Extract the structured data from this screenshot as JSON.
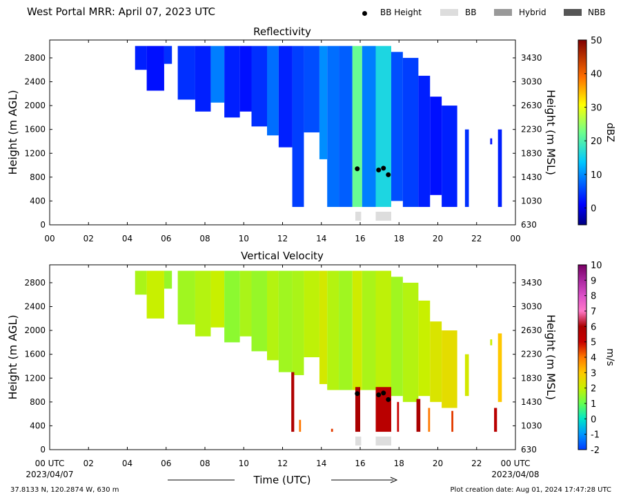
{
  "page": {
    "title": "West Portal MRR:  April 07, 2023 UTC",
    "coords": "37.8133 N, 120.2874 W, 630 m",
    "created": "Plot creation date: Aug 01, 2024 17:47:28 UTC",
    "start_date": "2023/04/07",
    "end_date": "2023/04/08",
    "time_label": "Time (UTC)"
  },
  "legend": [
    {
      "label": "BB Height",
      "kind": "dot",
      "color": "#000000"
    },
    {
      "label": "BB",
      "kind": "box",
      "color": "#dddddd"
    },
    {
      "label": "Hybrid",
      "kind": "box",
      "color": "#999999"
    },
    {
      "label": "NBB",
      "kind": "box",
      "color": "#555555"
    }
  ],
  "chart_data": [
    {
      "type": "heatmap",
      "title": "Reflectivity",
      "ylabel": "Height (m AGL)",
      "ylabel_right": "Height (m MSL)",
      "ylim": [
        0,
        3100
      ],
      "xlim": [
        0,
        24
      ],
      "x_ticks": [
        "00",
        "02",
        "04",
        "06",
        "08",
        "10",
        "12",
        "14",
        "16",
        "18",
        "20",
        "22",
        "00"
      ],
      "y_ticks": [
        0,
        400,
        800,
        1200,
        1600,
        2000,
        2400,
        2800
      ],
      "y_ticks_right": [
        630,
        1030,
        1430,
        1830,
        2230,
        2630,
        3030,
        3430
      ],
      "colorbar": {
        "label": "dBZ",
        "min": -5,
        "max": 50,
        "ticks": [
          0,
          10,
          20,
          30,
          40,
          50
        ]
      },
      "bb_height_points": [
        {
          "hour": 15.85,
          "height_m": 940
        },
        {
          "hour": 16.95,
          "height_m": 920
        },
        {
          "hour": 17.2,
          "height_m": 950
        },
        {
          "hour": 17.45,
          "height_m": 840
        }
      ],
      "bb_periods": [
        [
          15.75,
          16.05
        ],
        [
          16.8,
          17.6
        ]
      ],
      "echo_columns": [
        {
          "start": 4.4,
          "end": 5.0,
          "top": 3000,
          "bottom": 2600,
          "value": 3
        },
        {
          "start": 5.0,
          "end": 5.9,
          "top": 3000,
          "bottom": 2250,
          "value": 2
        },
        {
          "start": 5.9,
          "end": 6.3,
          "top": 3000,
          "bottom": 2700,
          "value": 4
        },
        {
          "start": 6.6,
          "end": 7.5,
          "top": 3000,
          "bottom": 2100,
          "value": 4
        },
        {
          "start": 7.5,
          "end": 8.3,
          "top": 3000,
          "bottom": 1900,
          "value": 3
        },
        {
          "start": 8.3,
          "end": 9.0,
          "top": 3000,
          "bottom": 2050,
          "value": 9
        },
        {
          "start": 9.0,
          "end": 9.8,
          "top": 3000,
          "bottom": 1800,
          "value": 3
        },
        {
          "start": 9.8,
          "end": 10.4,
          "top": 3000,
          "bottom": 1900,
          "value": 2
        },
        {
          "start": 10.4,
          "end": 11.2,
          "top": 3000,
          "bottom": 1650,
          "value": 4
        },
        {
          "start": 11.2,
          "end": 11.8,
          "top": 3000,
          "bottom": 1500,
          "value": 8
        },
        {
          "start": 11.8,
          "end": 12.5,
          "top": 3000,
          "bottom": 1300,
          "value": 3
        },
        {
          "start": 12.5,
          "end": 13.1,
          "top": 3000,
          "bottom": 300,
          "value": 5
        },
        {
          "start": 13.1,
          "end": 13.9,
          "top": 3000,
          "bottom": 1550,
          "value": 6
        },
        {
          "start": 13.9,
          "end": 14.3,
          "top": 3000,
          "bottom": 1100,
          "value": 10
        },
        {
          "start": 14.3,
          "end": 14.9,
          "top": 3000,
          "bottom": 300,
          "value": 8
        },
        {
          "start": 14.9,
          "end": 15.6,
          "top": 3000,
          "bottom": 300,
          "value": 7
        },
        {
          "start": 15.6,
          "end": 16.1,
          "top": 3000,
          "bottom": 300,
          "value": 22
        },
        {
          "start": 16.1,
          "end": 16.8,
          "top": 3000,
          "bottom": 300,
          "value": 9
        },
        {
          "start": 16.8,
          "end": 17.6,
          "top": 3000,
          "bottom": 300,
          "value": 16
        },
        {
          "start": 17.6,
          "end": 18.2,
          "top": 2900,
          "bottom": 400,
          "value": 6
        },
        {
          "start": 18.2,
          "end": 19.0,
          "top": 2800,
          "bottom": 300,
          "value": 5
        },
        {
          "start": 19.0,
          "end": 19.6,
          "top": 2500,
          "bottom": 300,
          "value": 3
        },
        {
          "start": 19.6,
          "end": 20.2,
          "top": 2150,
          "bottom": 500,
          "value": 2
        },
        {
          "start": 20.2,
          "end": 21.0,
          "top": 2000,
          "bottom": 300,
          "value": 3
        },
        {
          "start": 21.4,
          "end": 21.6,
          "top": 1600,
          "bottom": 300,
          "value": 4
        },
        {
          "start": 22.7,
          "end": 22.8,
          "top": 1450,
          "bottom": 1350,
          "value": 2
        },
        {
          "start": 23.1,
          "end": 23.3,
          "top": 1600,
          "bottom": 300,
          "value": 3
        }
      ]
    },
    {
      "type": "heatmap",
      "title": "Vertical Velocity",
      "ylabel": "Height (m AGL)",
      "ylabel_right": "Height (m MSL)",
      "xlabel": "Time (UTC)",
      "ylim": [
        0,
        3100
      ],
      "xlim": [
        0,
        24
      ],
      "x_ticks": [
        "00 UTC",
        "02",
        "04",
        "06",
        "08",
        "10",
        "12",
        "14",
        "16",
        "18",
        "20",
        "22",
        "00 UTC"
      ],
      "y_ticks": [
        0,
        400,
        800,
        1200,
        1600,
        2000,
        2400,
        2800
      ],
      "y_ticks_right": [
        630,
        1030,
        1430,
        1830,
        2230,
        2630,
        3030,
        3430
      ],
      "colorbar": {
        "label": "m/s",
        "min": -2,
        "max": 10,
        "ticks": [
          -2,
          -1,
          0,
          1,
          2,
          3,
          4,
          5,
          6,
          7,
          8,
          9,
          10
        ]
      },
      "bb_height_points": [
        {
          "hour": 15.85,
          "height_m": 940
        },
        {
          "hour": 16.95,
          "height_m": 920
        },
        {
          "hour": 17.2,
          "height_m": 950
        },
        {
          "hour": 17.45,
          "height_m": 840
        }
      ],
      "bb_periods": [
        [
          15.75,
          16.05
        ],
        [
          16.8,
          17.6
        ]
      ],
      "echo_columns": [
        {
          "start": 4.4,
          "end": 5.0,
          "top": 3000,
          "bottom": 2600,
          "value": 1.7
        },
        {
          "start": 5.0,
          "end": 5.9,
          "top": 3000,
          "bottom": 2200,
          "value": 2.0
        },
        {
          "start": 5.9,
          "end": 6.3,
          "top": 3000,
          "bottom": 2700,
          "value": 1.5
        },
        {
          "start": 6.6,
          "end": 7.5,
          "top": 3000,
          "bottom": 2100,
          "value": 1.6
        },
        {
          "start": 7.5,
          "end": 8.3,
          "top": 3000,
          "bottom": 1900,
          "value": 1.8
        },
        {
          "start": 8.3,
          "end": 9.0,
          "top": 3000,
          "bottom": 2050,
          "value": 2.0
        },
        {
          "start": 9.0,
          "end": 9.8,
          "top": 3000,
          "bottom": 1800,
          "value": 1.4
        },
        {
          "start": 9.8,
          "end": 10.4,
          "top": 3000,
          "bottom": 1900,
          "value": 1.7
        },
        {
          "start": 10.4,
          "end": 11.2,
          "top": 3000,
          "bottom": 1650,
          "value": 1.5
        },
        {
          "start": 11.2,
          "end": 11.8,
          "top": 3000,
          "bottom": 1500,
          "value": 1.8
        },
        {
          "start": 11.8,
          "end": 12.5,
          "top": 3000,
          "bottom": 1300,
          "value": 1.6
        },
        {
          "start": 12.5,
          "end": 13.1,
          "top": 3000,
          "bottom": 1250,
          "value": 1.7
        },
        {
          "start": 13.1,
          "end": 13.9,
          "top": 3000,
          "bottom": 1550,
          "value": 1.9
        },
        {
          "start": 13.9,
          "end": 14.3,
          "top": 3000,
          "bottom": 1100,
          "value": 2.2
        },
        {
          "start": 14.3,
          "end": 14.9,
          "top": 3000,
          "bottom": 1000,
          "value": 1.8
        },
        {
          "start": 14.9,
          "end": 15.6,
          "top": 3000,
          "bottom": 1000,
          "value": 1.6
        },
        {
          "start": 15.6,
          "end": 16.1,
          "top": 3000,
          "bottom": 1000,
          "value": 2.1
        },
        {
          "start": 16.1,
          "end": 16.8,
          "top": 3000,
          "bottom": 1000,
          "value": 1.7
        },
        {
          "start": 16.8,
          "end": 17.6,
          "top": 3000,
          "bottom": 1000,
          "value": 1.9
        },
        {
          "start": 17.6,
          "end": 18.2,
          "top": 2900,
          "bottom": 900,
          "value": 1.6
        },
        {
          "start": 18.2,
          "end": 19.0,
          "top": 2800,
          "bottom": 800,
          "value": 1.8
        },
        {
          "start": 19.0,
          "end": 19.6,
          "top": 2500,
          "bottom": 900,
          "value": 2.0
        },
        {
          "start": 19.6,
          "end": 20.2,
          "top": 2150,
          "bottom": 800,
          "value": 2.3
        },
        {
          "start": 20.2,
          "end": 21.0,
          "top": 2000,
          "bottom": 700,
          "value": 2.5
        },
        {
          "start": 21.4,
          "end": 21.6,
          "top": 1600,
          "bottom": 900,
          "value": 2.2
        },
        {
          "start": 22.7,
          "end": 22.8,
          "top": 1850,
          "bottom": 1750,
          "value": 2.0
        },
        {
          "start": 23.1,
          "end": 23.3,
          "top": 1950,
          "bottom": 800,
          "value": 3.0
        }
      ],
      "fall_streaks": [
        {
          "start": 12.45,
          "end": 12.6,
          "top": 1300,
          "value": 5.8
        },
        {
          "start": 12.85,
          "end": 12.95,
          "top": 500,
          "value": 4.0
        },
        {
          "start": 14.5,
          "end": 14.6,
          "top": 350,
          "value": 4.5
        },
        {
          "start": 15.75,
          "end": 16.0,
          "top": 1050,
          "value": 6.0
        },
        {
          "start": 16.8,
          "end": 17.6,
          "top": 1050,
          "value": 5.5
        },
        {
          "start": 17.9,
          "end": 18.0,
          "top": 800,
          "value": 5.0
        },
        {
          "start": 18.9,
          "end": 19.1,
          "top": 850,
          "value": 6.0
        },
        {
          "start": 19.5,
          "end": 19.6,
          "top": 700,
          "value": 4.0
        },
        {
          "start": 20.7,
          "end": 20.8,
          "top": 650,
          "value": 4.5
        },
        {
          "start": 22.9,
          "end": 23.05,
          "top": 700,
          "value": 5.5
        }
      ]
    }
  ]
}
